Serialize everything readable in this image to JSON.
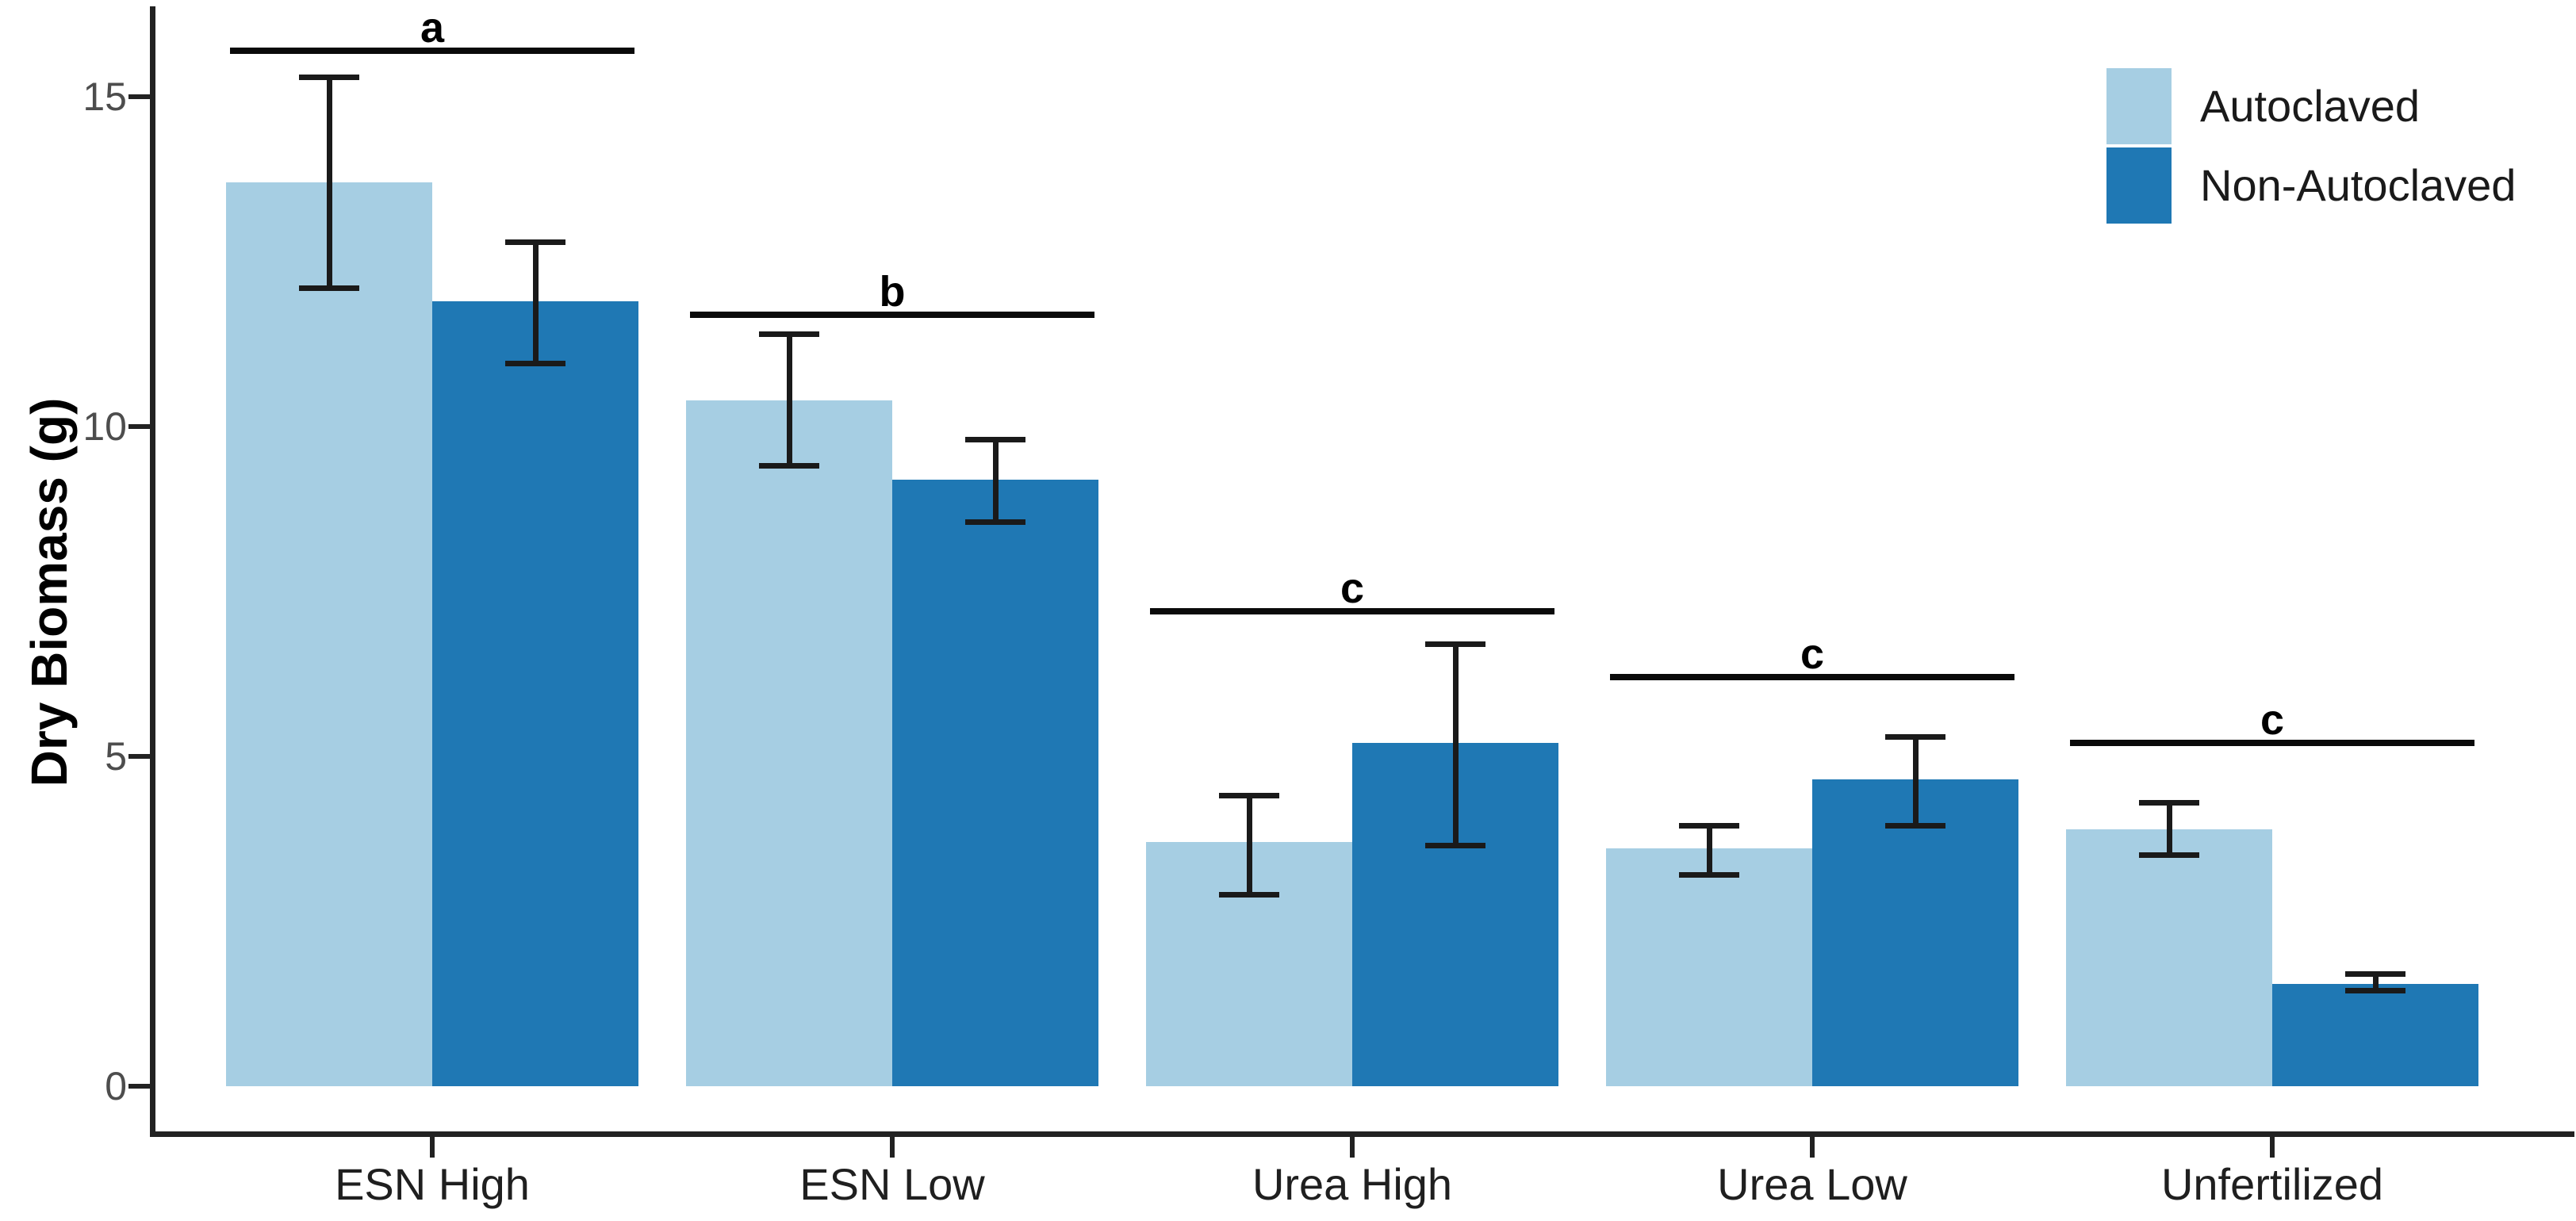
{
  "chart_data": {
    "type": "bar",
    "title": "",
    "xlabel": "",
    "ylabel": "Dry Biomass (g)",
    "categories": [
      "ESN High",
      "ESN Low",
      "Urea High",
      "Urea Low",
      "Unfertilized"
    ],
    "series": [
      {
        "name": "Autoclaved",
        "color": "#A6CEE3",
        "values": [
          13.7,
          10.4,
          3.7,
          3.6,
          3.9
        ],
        "error_low": [
          12.1,
          9.4,
          2.9,
          3.2,
          3.5
        ],
        "error_high": [
          15.3,
          11.4,
          4.4,
          3.95,
          4.3
        ]
      },
      {
        "name": "Non-Autoclaved",
        "color": "#1F78B4",
        "values": [
          11.9,
          9.2,
          5.2,
          4.65,
          1.55
        ],
        "error_low": [
          10.95,
          8.55,
          3.65,
          3.95,
          1.45
        ],
        "error_high": [
          12.8,
          9.8,
          6.7,
          5.3,
          1.7
        ]
      }
    ],
    "significance_letters": [
      {
        "category": "ESN High",
        "label": "a",
        "y": 15.7
      },
      {
        "category": "ESN Low",
        "label": "b",
        "y": 11.7
      },
      {
        "category": "Urea High",
        "label": "c",
        "y": 7.2
      },
      {
        "category": "Urea Low",
        "label": "c",
        "y": 6.2
      },
      {
        "category": "Unfertilized",
        "label": "c",
        "y": 5.2
      }
    ],
    "yticks": [
      0,
      5,
      10,
      15
    ],
    "ylim": [
      -0.76,
      16.4
    ],
    "grid": false,
    "legend_position": "top-right",
    "error_bar_color": "#1a1a1a",
    "axis_color": "#222222"
  }
}
